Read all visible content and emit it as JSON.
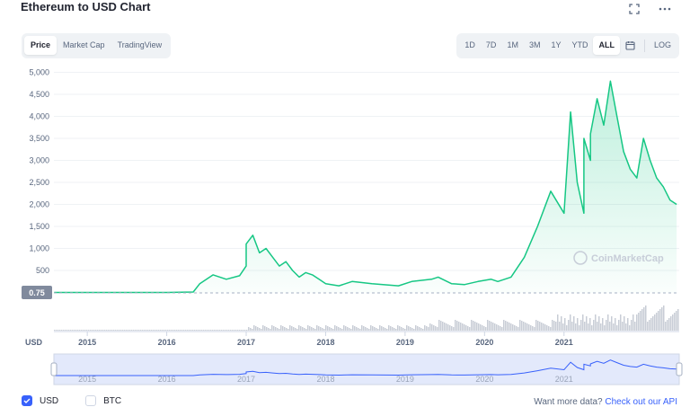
{
  "header": {
    "title": "Ethereum to USD Chart"
  },
  "icons": {
    "fullscreen": "fullscreen-icon",
    "more": "more-icon",
    "calendar": "calendar-icon"
  },
  "tabs_left": [
    {
      "label": "Price",
      "active": true
    },
    {
      "label": "Market Cap",
      "active": false
    },
    {
      "label": "TradingView",
      "active": false
    }
  ],
  "tabs_right": [
    {
      "label": "1D",
      "active": false
    },
    {
      "label": "7D",
      "active": false
    },
    {
      "label": "1M",
      "active": false
    },
    {
      "label": "3M",
      "active": false
    },
    {
      "label": "1Y",
      "active": false
    },
    {
      "label": "YTD",
      "active": false
    },
    {
      "label": "ALL",
      "active": true
    }
  ],
  "log_label": "LOG",
  "colors": {
    "line": "#16c784",
    "accent": "#3861fb",
    "muted": "#58667e"
  },
  "chart_data": {
    "type": "area",
    "y_ticks": [
      "5,000",
      "4,500",
      "4,000",
      "3,500",
      "3,000",
      "2,500",
      "2,000",
      "1,500",
      "1,000",
      "500"
    ],
    "ylim": [
      0,
      5000
    ],
    "x_ticks": [
      "2015",
      "2016",
      "2017",
      "2018",
      "2019",
      "2020",
      "2021"
    ],
    "ylabel": "USD",
    "start_price_label": "0.75",
    "watermark": "CoinMarketCap",
    "series": [
      {
        "name": "USD",
        "x": [
          "2014-08",
          "2015-06",
          "2016-01",
          "2016-05",
          "2016-06",
          "2016-08",
          "2016-10",
          "2016-12",
          "2017-01",
          "2017-01",
          "2017-02",
          "2017-03",
          "2017-04",
          "2017-05",
          "2017-06",
          "2017-07",
          "2017-08",
          "2017-09",
          "2017-10",
          "2017-11",
          "2017-12",
          "2018-01",
          "2018-03",
          "2018-05",
          "2018-08",
          "2018-12",
          "2019-02",
          "2019-05",
          "2019-06",
          "2019-08",
          "2019-10",
          "2019-12",
          "2020-02",
          "2020-03",
          "2020-05",
          "2020-07",
          "2020-09",
          "2020-11",
          "2021-01",
          "2021-02",
          "2021-03",
          "2021-04",
          "2021-04",
          "2021-05",
          "2021-05",
          "2021-06",
          "2021-07",
          "2021-08",
          "2021-09",
          "2021-10",
          "2021-11",
          "2021-12",
          "2022-01",
          "2022-02",
          "2022-03",
          "2022-04",
          "2022-05",
          "2022-06"
        ],
        "values": [
          1,
          1,
          1,
          10,
          200,
          400,
          300,
          380,
          600,
          1100,
          1300,
          900,
          1000,
          800,
          600,
          700,
          500,
          350,
          450,
          400,
          300,
          200,
          150,
          250,
          200,
          150,
          250,
          300,
          350,
          200,
          180,
          250,
          300,
          250,
          350,
          800,
          1500,
          2300,
          1800,
          4100,
          2500,
          1800,
          3500,
          3000,
          3600,
          4400,
          3800,
          4800,
          4000,
          3200,
          2800,
          2600,
          3500,
          3000,
          2600,
          2400,
          2100,
          2000
        ]
      }
    ],
    "navigator_x_ticks": [
      "2015",
      "2016",
      "2017",
      "2018",
      "2019",
      "2020",
      "2021"
    ],
    "legend": [
      "USD",
      "BTC"
    ],
    "legend_checked": {
      "USD": true,
      "BTC": false
    }
  },
  "footer": {
    "api_text": "Want more data?",
    "api_link": "Check out our API"
  }
}
